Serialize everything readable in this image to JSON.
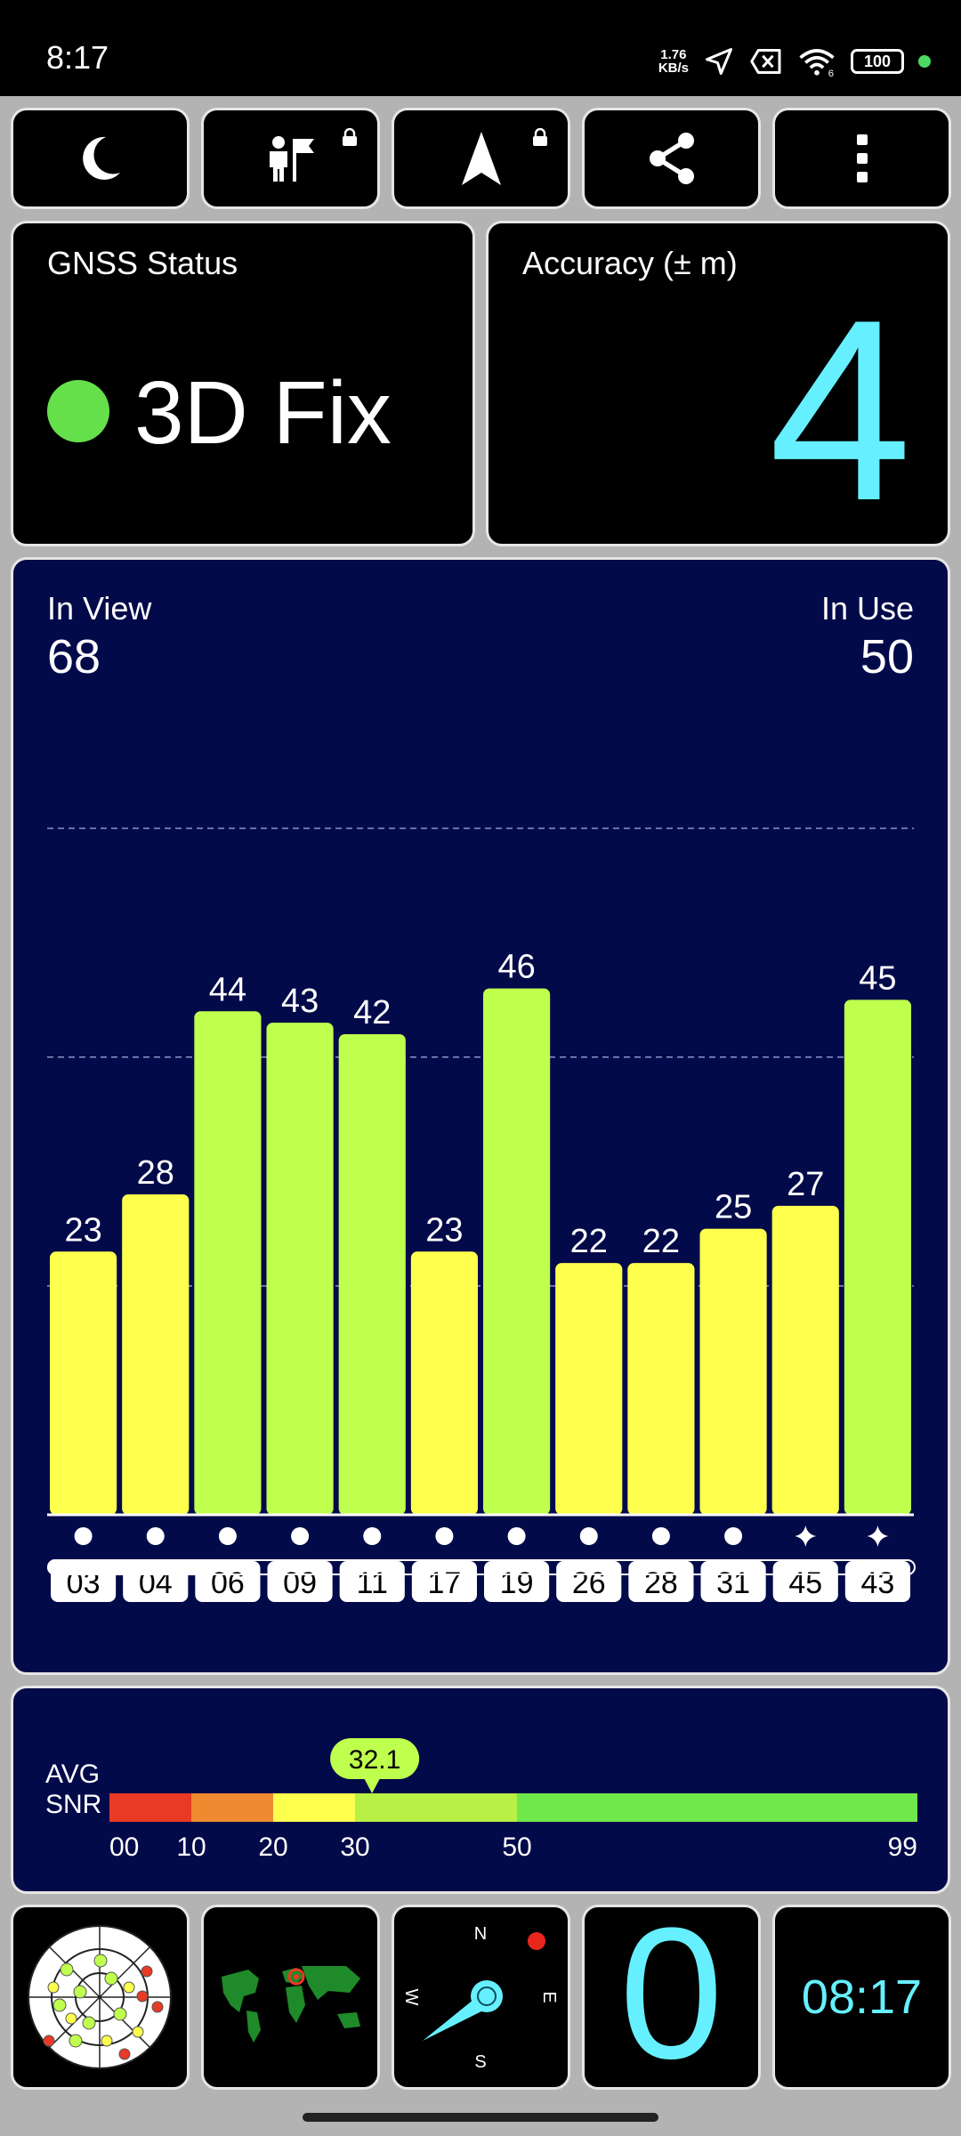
{
  "status_bar": {
    "time": "8:17",
    "net_speed_value": "1.76",
    "net_speed_unit": "KB/s",
    "battery": "100",
    "icons": [
      "location-arrow-icon",
      "sim-error-icon",
      "wifi-6-icon",
      "battery-icon",
      "dot-icon"
    ]
  },
  "toolbar": {
    "buttons": [
      {
        "icon": "moon-icon"
      },
      {
        "icon": "person-flag-icon",
        "locked": true
      },
      {
        "icon": "navigation-arrow-icon",
        "locked": true
      },
      {
        "icon": "share-icon"
      },
      {
        "icon": "more-vertical-icon"
      }
    ]
  },
  "gnss_status": {
    "label": "GNSS Status",
    "value": "3D Fix",
    "indicator_color": "#66e04a"
  },
  "accuracy": {
    "label": "Accuracy (± m)",
    "value": "4",
    "color": "#66f0ff"
  },
  "satellites": {
    "in_view_label": "In View",
    "in_view": "68",
    "in_use_label": "In Use",
    "in_use": "50"
  },
  "chart_data": {
    "type": "bar",
    "categories": [
      "03",
      "04",
      "06",
      "09",
      "11",
      "17",
      "19",
      "26",
      "28",
      "31",
      "45",
      "43"
    ],
    "values": [
      23,
      28,
      44,
      43,
      42,
      23,
      46,
      22,
      22,
      25,
      27,
      45
    ],
    "markers": [
      "circle",
      "circle",
      "circle",
      "circle",
      "circle",
      "circle",
      "circle",
      "circle",
      "circle",
      "circle",
      "star",
      "star"
    ],
    "ylim": [
      0,
      70
    ],
    "gridlines": [
      20,
      40,
      60
    ],
    "colors": {
      "low": "#ffff4d",
      "high": "#bfff4d",
      "threshold": 30
    }
  },
  "scroll": {
    "position": 0.0,
    "extent": 0.18
  },
  "avg_snr": {
    "label_line1": "AVG",
    "label_line2": "SNR",
    "value": "32.1",
    "value_num": 32.1,
    "scale_min": 0,
    "scale_max": 99,
    "ticks": [
      {
        "label": "00",
        "value": 0
      },
      {
        "label": "10",
        "value": 10
      },
      {
        "label": "20",
        "value": 20
      },
      {
        "label": "30",
        "value": 30
      },
      {
        "label": "50",
        "value": 50
      },
      {
        "label": "99",
        "value": 99
      }
    ],
    "segments": [
      {
        "from": 0,
        "to": 10,
        "color": "#e83a25"
      },
      {
        "from": 10,
        "to": 20,
        "color": "#f08a30"
      },
      {
        "from": 20,
        "to": 30,
        "color": "#ffff4d"
      },
      {
        "from": 30,
        "to": 50,
        "color": "#b8f045"
      },
      {
        "from": 50,
        "to": 99,
        "color": "#6ee84a"
      }
    ]
  },
  "bottom_tiles": {
    "sky_icon": "sky-plot-icon",
    "map_icon": "world-map-icon",
    "compass": {
      "n": "N",
      "e": "E",
      "s": "S",
      "w": "W"
    },
    "speed": "0",
    "clock": "08:17",
    "accent": "#66f0ff"
  }
}
